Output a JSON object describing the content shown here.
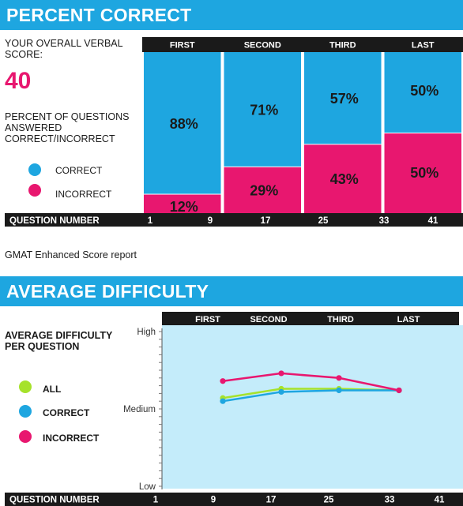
{
  "section1": {
    "title": "PERCENT CORRECT",
    "score_label": "YOUR OVERALL VERBAL SCORE:",
    "score_value": "40",
    "desc": "PERCENT OF QUESTIONS ANSWERED CORRECT/INCORRECT",
    "legend": [
      {
        "label": "CORRECT",
        "color": "#1ea6e0"
      },
      {
        "label": "INCORRECT",
        "color": "#e8176f"
      }
    ]
  },
  "caption": "GMAT Enhanced Score report",
  "section2": {
    "title": "AVERAGE DIFFICULTY",
    "desc": "AVERAGE DIFFICULTY PER QUESTION",
    "legend": [
      {
        "label": "ALL",
        "color": "#a6e22b"
      },
      {
        "label": "CORRECT",
        "color": "#1ea6e0"
      },
      {
        "label": "INCORRECT",
        "color": "#e8176f"
      }
    ]
  },
  "chart_data": [
    {
      "type": "bar",
      "stacked": true,
      "categories": [
        "FIRST",
        "SECOND",
        "THIRD",
        "LAST"
      ],
      "series": [
        {
          "name": "INCORRECT",
          "values": [
            12,
            29,
            43,
            50
          ],
          "labels": [
            "12%",
            "29%",
            "43%",
            "50%"
          ],
          "color": "#e8176f"
        },
        {
          "name": "CORRECT",
          "values": [
            88,
            71,
            57,
            50
          ],
          "labels": [
            "88%",
            "71%",
            "57%",
            "50%"
          ],
          "color": "#1ea6e0"
        }
      ],
      "ylim": [
        0,
        100
      ],
      "xlabel": "QUESTION NUMBER",
      "xticks": [
        "1",
        "9",
        "17",
        "25",
        "33",
        "41"
      ]
    },
    {
      "type": "line",
      "categories": [
        "FIRST",
        "SECOND",
        "THIRD",
        "LAST"
      ],
      "x": [
        9,
        17,
        25,
        33
      ],
      "xlabel": "QUESTION NUMBER",
      "xticks": [
        "1",
        "9",
        "17",
        "25",
        "33",
        "41"
      ],
      "y_ticks": [
        "Low",
        "Medium",
        "High"
      ],
      "ylim": [
        0,
        1
      ],
      "series": [
        {
          "name": "ALL",
          "color": "#a6e22b",
          "values": [
            0.57,
            0.63,
            0.63,
            0.62
          ]
        },
        {
          "name": "CORRECT",
          "color": "#1ea6e0",
          "values": [
            0.55,
            0.61,
            0.62,
            0.62
          ]
        },
        {
          "name": "INCORRECT",
          "color": "#e8176f",
          "values": [
            0.68,
            0.73,
            0.7,
            0.62
          ]
        }
      ]
    }
  ]
}
